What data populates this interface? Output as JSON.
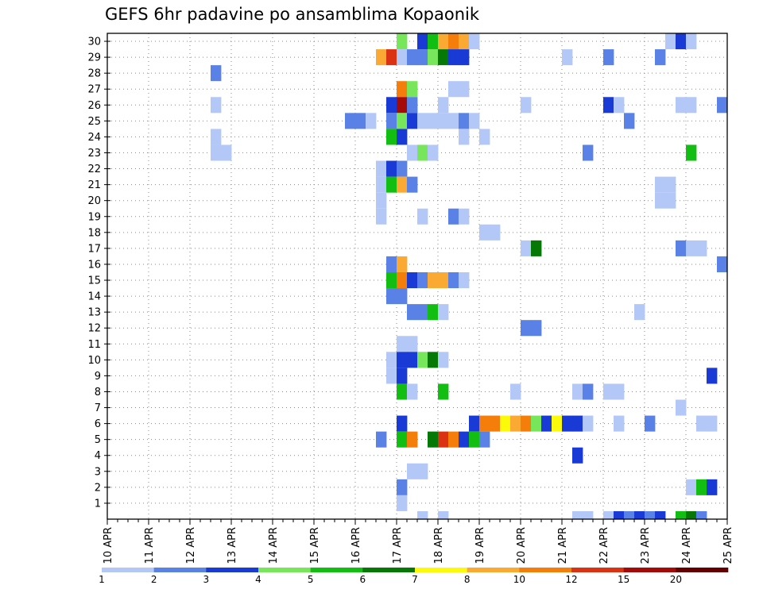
{
  "chart_data": {
    "type": "heatmap",
    "title": "GEFS 6hr padavine po ansamblima Kopaonik",
    "xlabel": "",
    "ylabel": "",
    "x_ticks": [
      "10 APR",
      "11 APR",
      "12 APR",
      "13 APR",
      "14 APR",
      "15 APR",
      "16 APR",
      "17 APR",
      "18 APR",
      "19 APR",
      "20 APR",
      "21 APR",
      "22 APR",
      "23 APR",
      "24 APR",
      "25 APR"
    ],
    "y_ticks": [
      "1",
      "2",
      "3",
      "4",
      "5",
      "6",
      "7",
      "8",
      "9",
      "10",
      "11",
      "12",
      "13",
      "14",
      "15",
      "16",
      "17",
      "18",
      "19",
      "20",
      "21",
      "22",
      "23",
      "24",
      "25",
      "26",
      "27",
      "28",
      "29",
      "30"
    ],
    "x_range": [
      "10 APR 00Z",
      "25 APR 00Z"
    ],
    "x_step": "6 hours",
    "y_range": [
      0,
      30
    ],
    "grid": true,
    "colorbar": {
      "position": "bottom",
      "levels": [
        "1",
        "2",
        "3",
        "4",
        "5",
        "6",
        "7",
        "8",
        "10",
        "12",
        "15",
        "20"
      ],
      "colors": [
        "#b4c8f8",
        "#5a82e6",
        "#1a3ad6",
        "#78e65a",
        "#12be12",
        "#067806",
        "#fafa0a",
        "#faaa32",
        "#f57d0a",
        "#dc3214",
        "#a50a0a",
        "#640000"
      ]
    },
    "cells_description": "Each cell: member = ensemble member (row), time = 6-hourly step index from 10 APR 00Z (0-59), value = precipitation class (1 = 1-2, 2 = 2-3, ... 12 = >20)",
    "cells": [
      {
        "member": 30,
        "time": 28,
        "value": 4
      },
      {
        "member": 30,
        "time": 30,
        "value": 3
      },
      {
        "member": 30,
        "time": 31,
        "value": 5
      },
      {
        "member": 30,
        "time": 32,
        "value": 8
      },
      {
        "member": 30,
        "time": 33,
        "value": 9
      },
      {
        "member": 30,
        "time": 34,
        "value": 8
      },
      {
        "member": 30,
        "time": 35,
        "value": 1
      },
      {
        "member": 30,
        "time": 54,
        "value": 1
      },
      {
        "member": 30,
        "time": 55,
        "value": 3
      },
      {
        "member": 30,
        "time": 56,
        "value": 1
      },
      {
        "member": 29,
        "time": 26,
        "value": 8
      },
      {
        "member": 29,
        "time": 27,
        "value": 10
      },
      {
        "member": 29,
        "time": 28,
        "value": 1
      },
      {
        "member": 29,
        "time": 29,
        "value": 2
      },
      {
        "member": 29,
        "time": 30,
        "value": 2
      },
      {
        "member": 29,
        "time": 31,
        "value": 4
      },
      {
        "member": 29,
        "time": 32,
        "value": 6
      },
      {
        "member": 29,
        "time": 33,
        "value": 3
      },
      {
        "member": 29,
        "time": 34,
        "value": 3
      },
      {
        "member": 29,
        "time": 44,
        "value": 1
      },
      {
        "member": 29,
        "time": 48,
        "value": 2
      },
      {
        "member": 29,
        "time": 53,
        "value": 2
      },
      {
        "member": 28,
        "time": 10,
        "value": 2
      },
      {
        "member": 27,
        "time": 28,
        "value": 9
      },
      {
        "member": 27,
        "time": 29,
        "value": 4
      },
      {
        "member": 27,
        "time": 33,
        "value": 1
      },
      {
        "member": 27,
        "time": 34,
        "value": 1
      },
      {
        "member": 26,
        "time": 10,
        "value": 1
      },
      {
        "member": 26,
        "time": 27,
        "value": 3
      },
      {
        "member": 26,
        "time": 28,
        "value": 11
      },
      {
        "member": 26,
        "time": 29,
        "value": 2
      },
      {
        "member": 26,
        "time": 32,
        "value": 1
      },
      {
        "member": 26,
        "time": 40,
        "value": 1
      },
      {
        "member": 26,
        "time": 48,
        "value": 3
      },
      {
        "member": 26,
        "time": 49,
        "value": 1
      },
      {
        "member": 26,
        "time": 55,
        "value": 1
      },
      {
        "member": 26,
        "time": 56,
        "value": 1
      },
      {
        "member": 26,
        "time": 59,
        "value": 2
      },
      {
        "member": 25,
        "time": 23,
        "value": 2
      },
      {
        "member": 25,
        "time": 24,
        "value": 2
      },
      {
        "member": 25,
        "time": 25,
        "value": 1
      },
      {
        "member": 25,
        "time": 27,
        "value": 2
      },
      {
        "member": 25,
        "time": 28,
        "value": 4
      },
      {
        "member": 25,
        "time": 29,
        "value": 3
      },
      {
        "member": 25,
        "time": 30,
        "value": 1
      },
      {
        "member": 25,
        "time": 31,
        "value": 1
      },
      {
        "member": 25,
        "time": 32,
        "value": 1
      },
      {
        "member": 25,
        "time": 33,
        "value": 1
      },
      {
        "member": 25,
        "time": 34,
        "value": 2
      },
      {
        "member": 25,
        "time": 35,
        "value": 1
      },
      {
        "member": 25,
        "time": 50,
        "value": 2
      },
      {
        "member": 24,
        "time": 10,
        "value": 1
      },
      {
        "member": 24,
        "time": 27,
        "value": 5
      },
      {
        "member": 24,
        "time": 28,
        "value": 3
      },
      {
        "member": 24,
        "time": 34,
        "value": 1
      },
      {
        "member": 24,
        "time": 36,
        "value": 1
      },
      {
        "member": 23,
        "time": 10,
        "value": 1
      },
      {
        "member": 23,
        "time": 11,
        "value": 1
      },
      {
        "member": 23,
        "time": 29,
        "value": 1
      },
      {
        "member": 23,
        "time": 30,
        "value": 4
      },
      {
        "member": 23,
        "time": 31,
        "value": 1
      },
      {
        "member": 23,
        "time": 46,
        "value": 2
      },
      {
        "member": 23,
        "time": 56,
        "value": 5
      },
      {
        "member": 22,
        "time": 26,
        "value": 1
      },
      {
        "member": 22,
        "time": 27,
        "value": 3
      },
      {
        "member": 22,
        "time": 28,
        "value": 2
      },
      {
        "member": 21,
        "time": 26,
        "value": 1
      },
      {
        "member": 21,
        "time": 27,
        "value": 5
      },
      {
        "member": 21,
        "time": 28,
        "value": 8
      },
      {
        "member": 21,
        "time": 29,
        "value": 2
      },
      {
        "member": 21,
        "time": 53,
        "value": 1
      },
      {
        "member": 21,
        "time": 54,
        "value": 1
      },
      {
        "member": 20,
        "time": 26,
        "value": 1
      },
      {
        "member": 20,
        "time": 53,
        "value": 1
      },
      {
        "member": 20,
        "time": 54,
        "value": 1
      },
      {
        "member": 19,
        "time": 26,
        "value": 1
      },
      {
        "member": 19,
        "time": 30,
        "value": 1
      },
      {
        "member": 19,
        "time": 33,
        "value": 2
      },
      {
        "member": 19,
        "time": 34,
        "value": 1
      },
      {
        "member": 18,
        "time": 36,
        "value": 1
      },
      {
        "member": 18,
        "time": 37,
        "value": 1
      },
      {
        "member": 17,
        "time": 40,
        "value": 1
      },
      {
        "member": 17,
        "time": 41,
        "value": 6
      },
      {
        "member": 17,
        "time": 55,
        "value": 2
      },
      {
        "member": 17,
        "time": 56,
        "value": 1
      },
      {
        "member": 17,
        "time": 57,
        "value": 1
      },
      {
        "member": 16,
        "time": 27,
        "value": 2
      },
      {
        "member": 16,
        "time": 28,
        "value": 8
      },
      {
        "member": 16,
        "time": 59,
        "value": 2
      },
      {
        "member": 15,
        "time": 27,
        "value": 5
      },
      {
        "member": 15,
        "time": 28,
        "value": 9
      },
      {
        "member": 15,
        "time": 29,
        "value": 3
      },
      {
        "member": 15,
        "time": 30,
        "value": 2
      },
      {
        "member": 15,
        "time": 31,
        "value": 8
      },
      {
        "member": 15,
        "time": 32,
        "value": 8
      },
      {
        "member": 15,
        "time": 33,
        "value": 2
      },
      {
        "member": 15,
        "time": 34,
        "value": 1
      },
      {
        "member": 14,
        "time": 27,
        "value": 2
      },
      {
        "member": 14,
        "time": 28,
        "value": 2
      },
      {
        "member": 13,
        "time": 29,
        "value": 2
      },
      {
        "member": 13,
        "time": 30,
        "value": 2
      },
      {
        "member": 13,
        "time": 31,
        "value": 5
      },
      {
        "member": 13,
        "time": 32,
        "value": 1
      },
      {
        "member": 13,
        "time": 51,
        "value": 1
      },
      {
        "member": 12,
        "time": 40,
        "value": 2
      },
      {
        "member": 12,
        "time": 41,
        "value": 2
      },
      {
        "member": 11,
        "time": 28,
        "value": 1
      },
      {
        "member": 11,
        "time": 29,
        "value": 1
      },
      {
        "member": 10,
        "time": 27,
        "value": 1
      },
      {
        "member": 10,
        "time": 28,
        "value": 3
      },
      {
        "member": 10,
        "time": 29,
        "value": 3
      },
      {
        "member": 10,
        "time": 30,
        "value": 4
      },
      {
        "member": 10,
        "time": 31,
        "value": 6
      },
      {
        "member": 10,
        "time": 32,
        "value": 1
      },
      {
        "member": 9,
        "time": 27,
        "value": 1
      },
      {
        "member": 9,
        "time": 28,
        "value": 3
      },
      {
        "member": 9,
        "time": 58,
        "value": 3
      },
      {
        "member": 8,
        "time": 28,
        "value": 5
      },
      {
        "member": 8,
        "time": 29,
        "value": 1
      },
      {
        "member": 8,
        "time": 32,
        "value": 5
      },
      {
        "member": 8,
        "time": 39,
        "value": 1
      },
      {
        "member": 8,
        "time": 45,
        "value": 1
      },
      {
        "member": 8,
        "time": 46,
        "value": 2
      },
      {
        "member": 8,
        "time": 48,
        "value": 1
      },
      {
        "member": 8,
        "time": 49,
        "value": 1
      },
      {
        "member": 7,
        "time": 55,
        "value": 1
      },
      {
        "member": 6,
        "time": 28,
        "value": 3
      },
      {
        "member": 6,
        "time": 35,
        "value": 3
      },
      {
        "member": 6,
        "time": 36,
        "value": 9
      },
      {
        "member": 6,
        "time": 37,
        "value": 9
      },
      {
        "member": 6,
        "time": 38,
        "value": 7
      },
      {
        "member": 6,
        "time": 39,
        "value": 8
      },
      {
        "member": 6,
        "time": 40,
        "value": 9
      },
      {
        "member": 6,
        "time": 41,
        "value": 4
      },
      {
        "member": 6,
        "time": 42,
        "value": 3
      },
      {
        "member": 6,
        "time": 43,
        "value": 7
      },
      {
        "member": 6,
        "time": 44,
        "value": 3
      },
      {
        "member": 6,
        "time": 45,
        "value": 3
      },
      {
        "member": 6,
        "time": 46,
        "value": 1
      },
      {
        "member": 6,
        "time": 49,
        "value": 1
      },
      {
        "member": 6,
        "time": 52,
        "value": 2
      },
      {
        "member": 6,
        "time": 57,
        "value": 1
      },
      {
        "member": 6,
        "time": 58,
        "value": 1
      },
      {
        "member": 5,
        "time": 26,
        "value": 2
      },
      {
        "member": 5,
        "time": 28,
        "value": 5
      },
      {
        "member": 5,
        "time": 29,
        "value": 9
      },
      {
        "member": 5,
        "time": 31,
        "value": 6
      },
      {
        "member": 5,
        "time": 32,
        "value": 10
      },
      {
        "member": 5,
        "time": 33,
        "value": 9
      },
      {
        "member": 5,
        "time": 34,
        "value": 3
      },
      {
        "member": 5,
        "time": 35,
        "value": 5
      },
      {
        "member": 5,
        "time": 36,
        "value": 2
      },
      {
        "member": 4,
        "time": 45,
        "value": 3
      },
      {
        "member": 3,
        "time": 29,
        "value": 1
      },
      {
        "member": 3,
        "time": 30,
        "value": 1
      },
      {
        "member": 2,
        "time": 28,
        "value": 2
      },
      {
        "member": 2,
        "time": 56,
        "value": 1
      },
      {
        "member": 2,
        "time": 57,
        "value": 5
      },
      {
        "member": 2,
        "time": 58,
        "value": 3
      },
      {
        "member": 1,
        "time": 28,
        "value": 1
      },
      {
        "member": 0,
        "time": 30,
        "value": 1
      },
      {
        "member": 0,
        "time": 32,
        "value": 1
      },
      {
        "member": 0,
        "time": 45,
        "value": 1
      },
      {
        "member": 0,
        "time": 46,
        "value": 1
      },
      {
        "member": 0,
        "time": 48,
        "value": 1
      },
      {
        "member": 0,
        "time": 49,
        "value": 3
      },
      {
        "member": 0,
        "time": 50,
        "value": 2
      },
      {
        "member": 0,
        "time": 51,
        "value": 3
      },
      {
        "member": 0,
        "time": 52,
        "value": 2
      },
      {
        "member": 0,
        "time": 53,
        "value": 3
      },
      {
        "member": 0,
        "time": 55,
        "value": 5
      },
      {
        "member": 0,
        "time": 56,
        "value": 6
      },
      {
        "member": 0,
        "time": 57,
        "value": 2
      }
    ]
  }
}
